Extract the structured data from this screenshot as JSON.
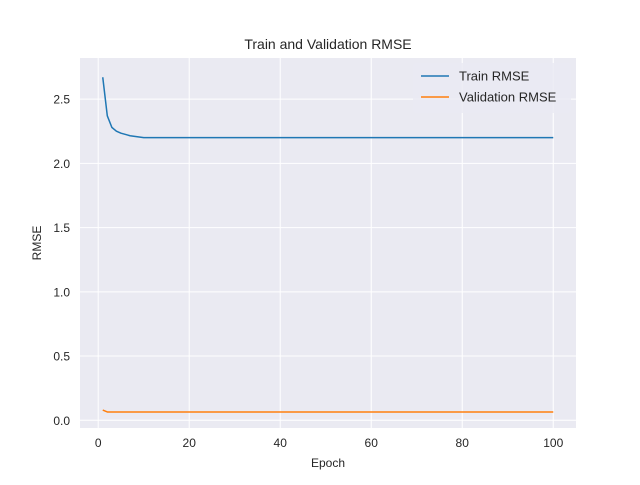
{
  "chart_data": {
    "type": "line",
    "title": "Train and Validation RMSE",
    "xlabel": "Epoch",
    "ylabel": "RMSE",
    "xlim": [
      -4.0,
      105.0
    ],
    "ylim": [
      -0.06,
      2.82
    ],
    "xticks": [
      0,
      20,
      40,
      60,
      80,
      100
    ],
    "xtick_labels": [
      "0",
      "20",
      "40",
      "60",
      "80",
      "100"
    ],
    "yticks": [
      0.0,
      0.5,
      1.0,
      1.5,
      2.0,
      2.5
    ],
    "ytick_labels": [
      "0.0",
      "0.5",
      "1.0",
      "1.5",
      "2.0",
      "2.5"
    ],
    "grid": true,
    "legend_position": "top-right",
    "series": [
      {
        "name": "Train RMSE",
        "color": "#1f77b4",
        "x": [
          1,
          2,
          3,
          4,
          5,
          6,
          7,
          8,
          9,
          10,
          15,
          20,
          30,
          40,
          50,
          60,
          70,
          80,
          90,
          100
        ],
        "y": [
          2.67,
          2.37,
          2.28,
          2.25,
          2.235,
          2.225,
          2.215,
          2.21,
          2.205,
          2.2,
          2.2,
          2.2,
          2.2,
          2.2,
          2.2,
          2.2,
          2.2,
          2.2,
          2.2,
          2.2
        ]
      },
      {
        "name": "Validation RMSE",
        "color": "#ff7f0e",
        "x": [
          1,
          2,
          3,
          4,
          5,
          10,
          20,
          40,
          60,
          80,
          100
        ],
        "y": [
          0.08,
          0.065,
          0.065,
          0.065,
          0.065,
          0.065,
          0.065,
          0.065,
          0.065,
          0.065,
          0.065
        ]
      }
    ]
  }
}
